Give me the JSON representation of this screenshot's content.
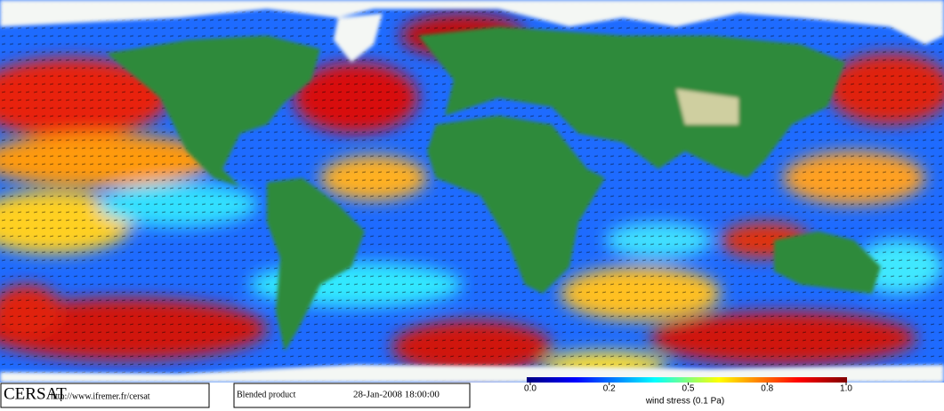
{
  "logo": {
    "name": "CERSAT",
    "url": "http://www.ifremer.fr/cersat"
  },
  "product": {
    "name": "Blended product",
    "date": "28-Jan-2008 18:00:00"
  },
  "colorbar": {
    "ticks": [
      {
        "value": 0,
        "label": "0.0"
      },
      0.2,
      0.5,
      0.8,
      {
        "value": 1,
        "label": "1.0"
      }
    ],
    "label": "wind stress (0.1 Pa)"
  }
}
